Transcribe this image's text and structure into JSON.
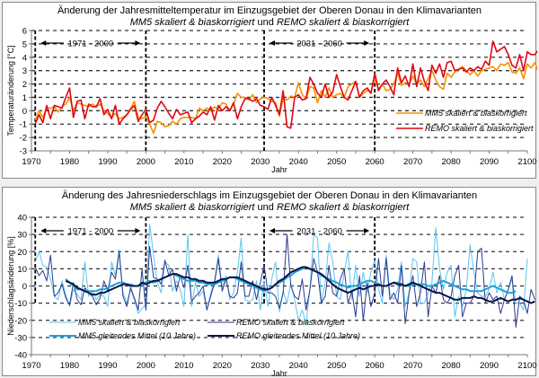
{
  "chart_data": [
    {
      "type": "line",
      "title": "Änderung der Jahresmitteltemperatur im Einzugsgebiet der Oberen Donau in den Klimavarianten",
      "subtitle_parts": [
        {
          "text": "MM5 skaliert & biaskorrigiert",
          "italic": true
        },
        {
          "text": " und ",
          "italic": false
        },
        {
          "text": "REMO skaliert & biaskorrigiert",
          "italic": true
        }
      ],
      "xlabel": "Jahr",
      "ylabel": "Temperaturänderung [°C]",
      "xlim": [
        1970,
        2100
      ],
      "ylim": [
        -3,
        6
      ],
      "xticks": [
        1970,
        1980,
        1990,
        2000,
        2010,
        2020,
        2030,
        2040,
        2050,
        2060,
        2070,
        2080,
        2090,
        2100
      ],
      "yticks": [
        -3,
        -2,
        -1,
        0,
        1,
        2,
        3,
        4,
        5,
        6
      ],
      "grid": "horizontal-dashed",
      "period_markers": [
        {
          "label": "1971 - 2000",
          "start": 1971,
          "end": 2000
        },
        {
          "label": "2031 - 2060",
          "start": 2031,
          "end": 2060
        }
      ],
      "legend_position": "bottom-right",
      "x_start": 1971,
      "series": [
        {
          "name": "MM5 skaliert & biaskorrigiert",
          "color": "#f39200",
          "values": [
            -0.7,
            0.0,
            -0.5,
            0.2,
            0.2,
            0.3,
            -0.1,
            0.3,
            0.5,
            1.0,
            0.0,
            0.6,
            0.5,
            0.4,
            0.3,
            0.5,
            0.3,
            0.5,
            0.0,
            -0.2,
            -0.5,
            -0.2,
            -0.6,
            -0.5,
            -0.3,
            0.2,
            0.7,
            -0.5,
            -0.6,
            -0.4,
            -1.0,
            -1.7,
            -0.8,
            -0.9,
            -1.2,
            -1.1,
            -0.8,
            -1.0,
            -0.6,
            -0.5,
            -0.5,
            -0.5,
            -0.6,
            0.2,
            0.0,
            0.2,
            0.0,
            0.3,
            0.1,
            0.6,
            0.5,
            0.0,
            0.5,
            1.3,
            1.0,
            1.0,
            0.8,
            1.2,
            0.6,
            0.9,
            1.0,
            0.9,
            0.7,
            0.6,
            -0.4,
            0.9,
            0.8,
            1.1,
            1.0,
            2.1,
            1.2,
            0.9,
            1.8,
            1.7,
            0.6,
            1.5,
            1.0,
            1.7,
            1.0,
            1.2,
            1.3,
            1.0,
            1.8,
            2.0,
            2.2,
            1.0,
            1.3,
            1.5,
            1.4,
            2.4,
            1.6,
            2.0,
            1.5,
            1.6,
            2.0,
            2.8,
            1.9,
            2.1,
            2.0,
            2.6,
            2.0,
            2.3,
            1.8,
            2.4,
            3.0,
            2.3,
            1.8,
            1.6,
            2.8,
            2.5,
            2.9,
            3.1,
            3.3,
            3.0,
            2.7,
            3.0,
            2.6,
            3.0,
            3.1,
            3.2,
            3.3,
            3.0,
            3.5,
            3.4,
            3.6,
            2.9,
            2.8,
            3.2,
            2.4,
            3.5,
            3.2,
            3.6,
            2.8,
            2.7
          ]
        },
        {
          "name": "REMO skaliert & biaskorrigiert",
          "color": "#e30613",
          "values": [
            -1.0,
            -0.3,
            -0.9,
            0.4,
            -0.6,
            0.4,
            0.3,
            0.2,
            1.0,
            1.7,
            -0.5,
            0.7,
            0.8,
            -0.6,
            0.5,
            0.3,
            0.3,
            0.9,
            -0.3,
            0.1,
            -0.6,
            0.4,
            -1.0,
            -0.6,
            -0.3,
            0.1,
            0.4,
            -0.8,
            -0.3,
            0.1,
            -0.9,
            -0.7,
            0.2,
            0.7,
            0.3,
            -0.2,
            -0.6,
            0.1,
            -0.3,
            -0.2,
            -0.1,
            -0.9,
            -0.6,
            -0.4,
            -0.1,
            -0.3,
            0.3,
            -0.7,
            0.4,
            0.0,
            0.3,
            0.0,
            0.6,
            -0.6,
            0.3,
            0.9,
            0.9,
            0.7,
            0.9,
            0.4,
            0.3,
            0.1,
            1.0,
            0.4,
            -0.3,
            1.5,
            -1.2,
            -1.3,
            1.0,
            1.2,
            0.8,
            0.9,
            2.5,
            2.0,
            1.3,
            1.0,
            2.0,
            1.0,
            1.4,
            2.7,
            1.8,
            1.0,
            0.8,
            1.5,
            2.2,
            1.0,
            1.5,
            1.7,
            1.3,
            2.8,
            1.5,
            2.0,
            2.3,
            1.8,
            1.2,
            3.2,
            2.1,
            2.6,
            1.8,
            3.5,
            1.8,
            3.2,
            2.2,
            1.5,
            3.4,
            2.8,
            3.5,
            2.5,
            3.6,
            3.7,
            3.0,
            3.1,
            3.2,
            2.9,
            3.2,
            3.0,
            3.3,
            3.1,
            3.7,
            3.4,
            5.2,
            4.4,
            4.6,
            4.8,
            4.2,
            3.4,
            3.2,
            4.2,
            3.0,
            4.4,
            4.2,
            4.2,
            4.6,
            4.8,
            4.0
          ]
        }
      ]
    },
    {
      "type": "line",
      "title": "Änderung des Jahresniederschlags im Einzugsgebiet der Oberen Donau in den Klimavarianten",
      "subtitle_parts": [
        {
          "text": "MM5 skaliert & biaskorrigiert",
          "italic": true
        },
        {
          "text": " und ",
          "italic": false
        },
        {
          "text": "REMO skaliert & biaskorrigiert",
          "italic": true
        }
      ],
      "xlabel": "Jahr",
      "ylabel": "Niederschlagsänderung [%]",
      "xlim": [
        1970,
        2100
      ],
      "ylim": [
        -40,
        40
      ],
      "xticks": [
        1970,
        1980,
        1990,
        2000,
        2010,
        2020,
        2030,
        2040,
        2050,
        2060,
        2070,
        2080,
        2090,
        2100
      ],
      "yticks": [
        -40,
        -30,
        -20,
        -10,
        0,
        10,
        20,
        30,
        40
      ],
      "grid": "horizontal-dashed",
      "period_markers": [
        {
          "label": "1971 - 2000",
          "start": 1971,
          "end": 2000
        },
        {
          "label": "2031 - 2060",
          "start": 2031,
          "end": 2060
        }
      ],
      "legend_position": "bottom",
      "x_start": 1971,
      "series": [
        {
          "name": "MM5 skaliert & biaskorrigiert",
          "color": "#5bc5f2",
          "width": "thin",
          "values": [
            14,
            20,
            12,
            11,
            4,
            -6,
            -8,
            3,
            -5,
            -12,
            -2,
            -5,
            -8,
            14,
            -6,
            -3,
            -8,
            -5,
            -6,
            -12,
            14,
            6,
            21,
            -4,
            -10,
            -2,
            -8,
            -16,
            -13,
            -11,
            36,
            18,
            2,
            -4,
            14,
            12,
            -3,
            3,
            -2,
            -12,
            30,
            -12,
            2,
            -6,
            -3,
            -14,
            -4,
            3,
            18,
            -1,
            6,
            -8,
            -4,
            8,
            28,
            -8,
            -9,
            -8,
            3,
            -14,
            3,
            -12,
            4,
            14,
            -15,
            -3,
            -10,
            2,
            -8,
            -20,
            -14,
            -22,
            -2,
            30,
            28,
            -10,
            2,
            25,
            14,
            -6,
            -8,
            8,
            20,
            -8,
            12,
            -6,
            8,
            -4,
            8,
            15,
            -2,
            -10,
            18,
            -4,
            -8,
            -2,
            14,
            -12,
            -4,
            16,
            14,
            -10,
            -10,
            -4,
            2,
            34,
            10,
            -2,
            8,
            12,
            -18,
            -6,
            -12,
            -2,
            24,
            8,
            -4,
            -6,
            -6,
            -2,
            8,
            -4,
            2,
            -8,
            -2,
            4,
            -10,
            -10,
            -14,
            16
          ]
        },
        {
          "name": "REMO skaliert & biaskorrigiert",
          "color": "#2b3a8f",
          "width": "thin",
          "values": [
            11,
            6,
            9,
            3,
            18,
            -6,
            -4,
            1,
            -7,
            -11,
            2,
            -8,
            -11,
            -1,
            -4,
            -6,
            -11,
            -7,
            3,
            -3,
            8,
            4,
            20,
            -6,
            -12,
            -1,
            -7,
            -14,
            10,
            -14,
            23,
            5,
            4,
            1,
            15,
            6,
            10,
            -3,
            6,
            -1,
            12,
            -9,
            -6,
            -4,
            0,
            -14,
            -6,
            2,
            16,
            -3,
            4,
            -6,
            -7,
            -4,
            14,
            -6,
            -6,
            3,
            -8,
            2,
            12,
            -4,
            -4,
            -6,
            -13,
            -4,
            30,
            0,
            -6,
            -8,
            4,
            -14,
            -2,
            16,
            8,
            -10,
            -6,
            12,
            -4,
            -6,
            4,
            10,
            -10,
            -3,
            -18,
            6,
            -20,
            2,
            -12,
            -4,
            16,
            -6,
            16,
            -8,
            -4,
            -10,
            12,
            -22,
            -4,
            6,
            -12,
            -4,
            14,
            -18,
            0,
            -4,
            6,
            -8,
            -10,
            -6,
            6,
            12,
            -18,
            -10,
            -10,
            -6,
            20,
            22,
            -10,
            -4,
            -8,
            -6,
            -16,
            -8,
            -2,
            6,
            -24,
            -6,
            -8,
            -16,
            -2,
            -8
          ]
        },
        {
          "name": "MM5 gleitendes Mittel (10 Jahre)",
          "color": "#1aa3dc",
          "width": "thick",
          "start_year": 1979,
          "values": [
            4,
            2,
            0,
            -2,
            -2,
            -3,
            -3,
            -3,
            -3,
            -2,
            -2,
            -1,
            0,
            1,
            2,
            2,
            1,
            1,
            0,
            0,
            1,
            2,
            3,
            2,
            3,
            4,
            5,
            6,
            7,
            6,
            5,
            4,
            3,
            3,
            3,
            2,
            2,
            1,
            1,
            1,
            2,
            3,
            4,
            5,
            5,
            4,
            3,
            2,
            1,
            0,
            -1,
            -2,
            -3,
            -2,
            -1,
            1,
            2,
            3,
            5,
            6,
            8,
            9,
            10,
            11,
            10,
            9,
            8,
            6,
            5,
            4,
            3,
            2,
            1,
            0,
            -1,
            0,
            0,
            1,
            2,
            3,
            3,
            2,
            1,
            0,
            0,
            1,
            2,
            2,
            1,
            0,
            0,
            1,
            1,
            1,
            1,
            0,
            0,
            1,
            2,
            3,
            2,
            1,
            0,
            -1,
            -2,
            -2,
            -3,
            -3,
            -3,
            -3,
            -2,
            -1,
            0,
            -1,
            -2,
            -3,
            -4,
            -4,
            -3
          ]
        },
        {
          "name": "REMO gleitendes Mittel (10 Jahre)",
          "color": "#0b1446",
          "width": "thick",
          "start_year": 1979,
          "values": [
            3,
            2,
            1,
            -1,
            -2,
            -3,
            -4,
            -5,
            -5,
            -4,
            -4,
            -3,
            -2,
            -1,
            0,
            1,
            1,
            0,
            0,
            0,
            2,
            1,
            2,
            3,
            3,
            4,
            5,
            6,
            7,
            7,
            6,
            5,
            5,
            4,
            4,
            3,
            3,
            2,
            2,
            2,
            3,
            4,
            4,
            5,
            5,
            5,
            4,
            3,
            2,
            1,
            0,
            -1,
            -2,
            -2,
            -1,
            1,
            3,
            4,
            6,
            8,
            9,
            10,
            11,
            11,
            10,
            9,
            8,
            7,
            5,
            3,
            1,
            -1,
            -2,
            -3,
            -4,
            -3,
            -2,
            -1,
            -2,
            -1,
            0,
            0,
            1,
            0,
            0,
            1,
            2,
            1,
            1,
            0,
            1,
            2,
            1,
            0,
            -1,
            -2,
            -3,
            -4,
            -4,
            -5,
            -6,
            -7,
            -8,
            -8,
            -7,
            -7,
            -7,
            -6,
            -7,
            -7,
            -8,
            -9,
            -9,
            -8,
            -7,
            -8,
            -9,
            -8,
            -8,
            -7,
            -8,
            -9,
            -10,
            -9
          ]
        }
      ]
    }
  ]
}
